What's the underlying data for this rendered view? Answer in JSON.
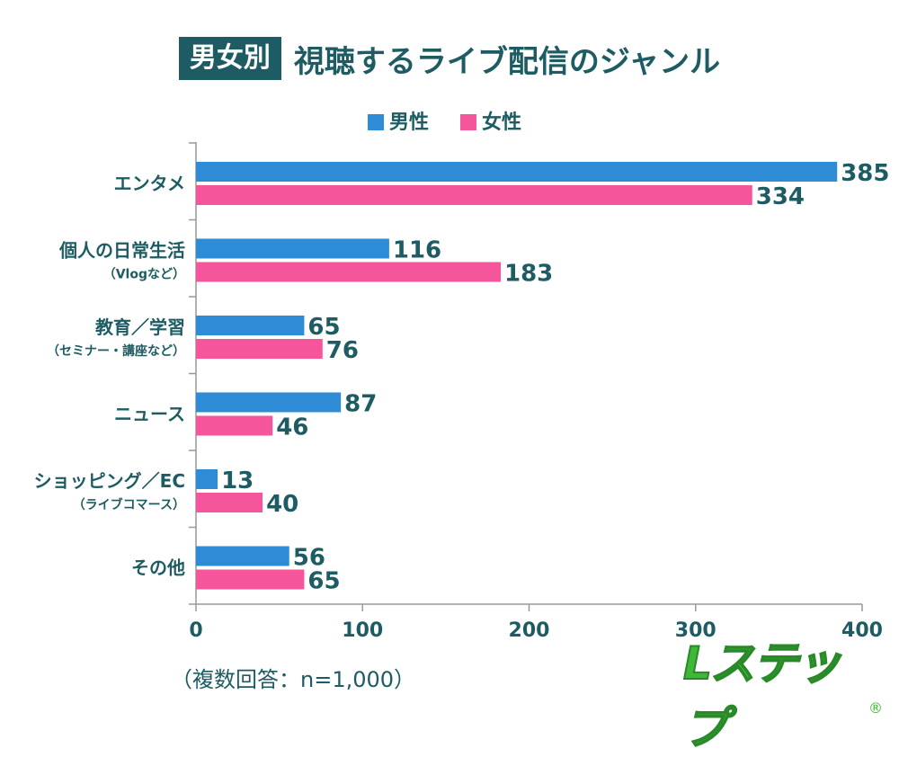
{
  "title": {
    "tag": "男女別",
    "main": "視聴するライブ配信のジャンル"
  },
  "footnote": "（複数回答：n=1,000）",
  "logo": {
    "text": "Lステップ",
    "mark": "®"
  },
  "colors": {
    "male": "#2e8bd6",
    "female": "#f5559a",
    "text": "#1d5c63",
    "axis": "#999999"
  },
  "chart_data": {
    "type": "bar",
    "orientation": "horizontal",
    "categories": [
      {
        "label": "エンタメ",
        "sub": ""
      },
      {
        "label": "個人の日常生活",
        "sub": "（Vlogなど）"
      },
      {
        "label": "教育／学習",
        "sub": "（セミナー・講座など）"
      },
      {
        "label": "ニュース",
        "sub": ""
      },
      {
        "label": "ショッピング／EC",
        "sub": "（ライブコマース）"
      },
      {
        "label": "その他",
        "sub": ""
      }
    ],
    "series": [
      {
        "name": "男性",
        "color": "#2e8bd6",
        "values": [
          385,
          116,
          65,
          87,
          13,
          56
        ]
      },
      {
        "name": "女性",
        "color": "#f5559a",
        "values": [
          334,
          183,
          76,
          46,
          40,
          65
        ]
      }
    ],
    "xlim": [
      0,
      400
    ],
    "xticks": [
      0,
      100,
      200,
      300,
      400
    ],
    "grid": false,
    "legend": "top-center"
  }
}
